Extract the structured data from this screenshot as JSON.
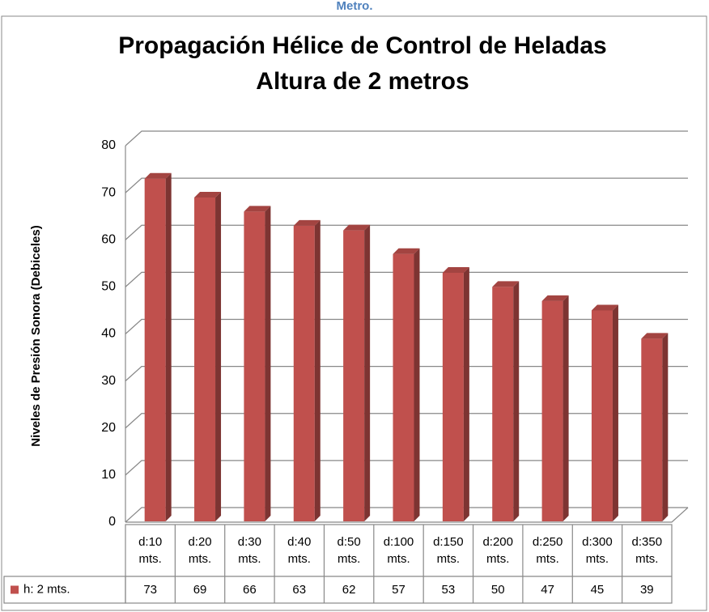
{
  "caption": "Metro.",
  "chart_data": {
    "type": "bar3d",
    "title": "Propagación Hélice de Control de Heladas",
    "subtitle": "Altura de 2 metros",
    "y_label": "Niveles de Presión Sonora (Debiceles)",
    "categories": [
      "d:10 mts.",
      "d:20 mts.",
      "d:30 mts.",
      "d:40 mts.",
      "d:50 mts.",
      "d:100 mts.",
      "d:150 mts.",
      "d:200 mts.",
      "d:250 mts.",
      "d:300 mts.",
      "d:350 mts."
    ],
    "series": [
      {
        "name": "h: 2 mts.",
        "color": "#c0504d",
        "values": [
          73,
          69,
          66,
          63,
          62,
          57,
          53,
          50,
          47,
          45,
          39
        ]
      }
    ],
    "ylim": [
      0,
      80
    ],
    "yticks": [
      0,
      10,
      20,
      30,
      40,
      50,
      60,
      70,
      80
    ],
    "grid": true,
    "data_table": true
  }
}
